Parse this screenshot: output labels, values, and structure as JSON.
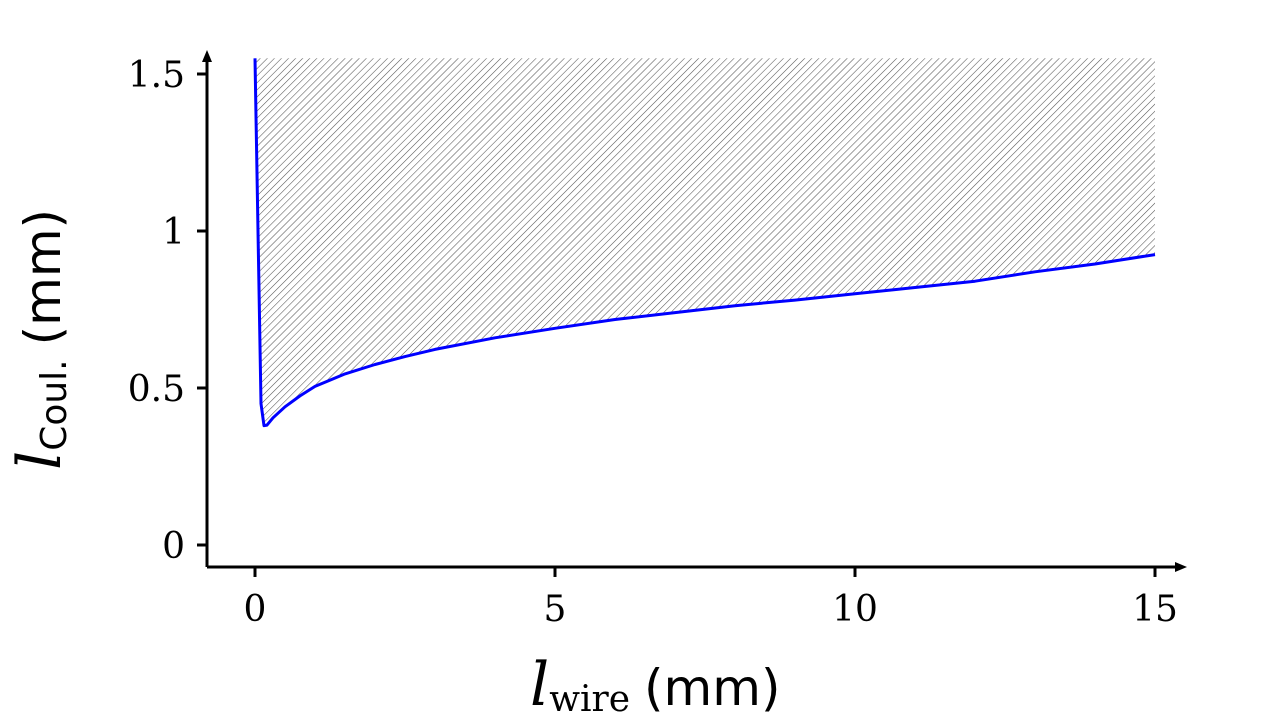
{
  "chart_data": {
    "type": "area",
    "title": "",
    "xlabel": {
      "symbol": "l",
      "subscript": "wire",
      "unit": "(mm)"
    },
    "ylabel": {
      "symbol": "l",
      "subscript": "Coul.",
      "unit": "(mm)"
    },
    "xlim": [
      -0.8,
      15.5
    ],
    "ylim": [
      -0.07,
      1.57
    ],
    "x_ticks": [
      0,
      5,
      10,
      15
    ],
    "x_tick_labels": [
      "0",
      "5",
      "10",
      "15"
    ],
    "y_ticks": [
      0,
      0.5,
      1,
      1.5
    ],
    "y_tick_labels": [
      "0",
      "0.5",
      "1",
      "1.5"
    ],
    "grid": false,
    "legend": "none",
    "fill": {
      "pattern": "diagonal-hatch",
      "color": "#555555",
      "upper_y": 1.55
    },
    "series": [
      {
        "color": "#0000ff",
        "x": [
          0,
          0.1,
          0.15,
          0.2,
          0.3,
          0.5,
          0.75,
          1,
          1.5,
          2,
          2.5,
          3,
          4,
          5,
          6,
          7,
          8,
          9,
          10,
          11,
          12,
          13,
          14,
          15
        ],
        "y": [
          1.55,
          0.45,
          0.38,
          0.382,
          0.405,
          0.44,
          0.475,
          0.505,
          0.545,
          0.575,
          0.6,
          0.623,
          0.66,
          0.69,
          0.718,
          0.74,
          0.762,
          0.78,
          0.8,
          0.82,
          0.84,
          0.87,
          0.895,
          0.925
        ]
      }
    ]
  }
}
